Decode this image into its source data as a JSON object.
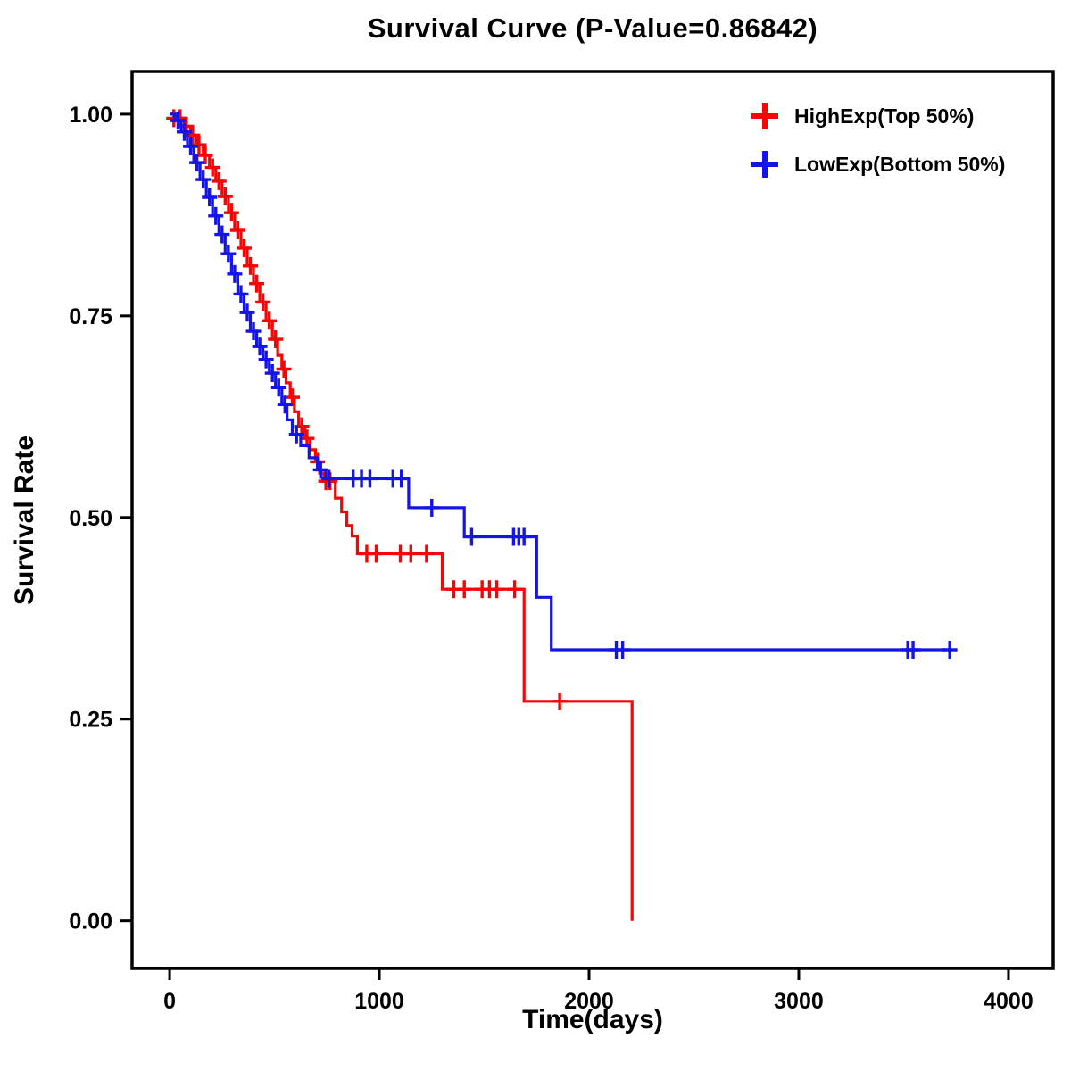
{
  "chart": {
    "title": "Survival Curve (P-Value=0.86842)",
    "xlabel": "Time(days)",
    "ylabel": "Survival Rate"
  },
  "chart_data": {
    "type": "line",
    "subtype": "kaplan-meier-step",
    "title": "Survival Curve (P-Value=0.86842)",
    "p_value": 0.86842,
    "xlabel": "Time(days)",
    "ylabel": "Survival Rate",
    "xlim": [
      -179,
      4213
    ],
    "ylim": [
      -0.059,
      1.053
    ],
    "x_ticks": [
      0,
      1000,
      2000,
      3000,
      4000
    ],
    "x_tick_labels": [
      "0",
      "1000",
      "2000",
      "3000",
      "4000"
    ],
    "y_ticks": [
      0.0,
      0.25,
      0.5,
      0.75,
      1.0
    ],
    "y_tick_labels": [
      "0.00",
      "0.25",
      "0.50",
      "0.75",
      "1.00"
    ],
    "grid": false,
    "legend_position": "top-right",
    "step_mode": "after",
    "series": [
      {
        "name": "HighExp(Top 50%)",
        "color": "#f50505",
        "points": [
          [
            0,
            1.0
          ],
          [
            35,
            0.995
          ],
          [
            70,
            0.985
          ],
          [
            100,
            0.974
          ],
          [
            130,
            0.962
          ],
          [
            160,
            0.949
          ],
          [
            190,
            0.934
          ],
          [
            220,
            0.917
          ],
          [
            250,
            0.898
          ],
          [
            280,
            0.878
          ],
          [
            310,
            0.856
          ],
          [
            340,
            0.834
          ],
          [
            370,
            0.812
          ],
          [
            400,
            0.79
          ],
          [
            430,
            0.767
          ],
          [
            460,
            0.744
          ],
          [
            490,
            0.721
          ],
          [
            515,
            0.701
          ],
          [
            535,
            0.684
          ],
          [
            555,
            0.667
          ],
          [
            575,
            0.649
          ],
          [
            595,
            0.631
          ],
          [
            615,
            0.613
          ],
          [
            645,
            0.598
          ],
          [
            670,
            0.584
          ],
          [
            695,
            0.569
          ],
          [
            715,
            0.555
          ],
          [
            735,
            0.545
          ],
          [
            790,
            0.524
          ],
          [
            820,
            0.507
          ],
          [
            845,
            0.49
          ],
          [
            870,
            0.477
          ],
          [
            895,
            0.455
          ],
          [
            1300,
            0.411
          ],
          [
            1690,
            0.272
          ],
          [
            2205,
            0.0
          ]
        ],
        "censors": [
          [
            20,
            0.995
          ],
          [
            50,
            0.995
          ],
          [
            80,
            0.985
          ],
          [
            110,
            0.974
          ],
          [
            140,
            0.962
          ],
          [
            170,
            0.949
          ],
          [
            205,
            0.934
          ],
          [
            235,
            0.917
          ],
          [
            265,
            0.898
          ],
          [
            295,
            0.878
          ],
          [
            325,
            0.856
          ],
          [
            355,
            0.834
          ],
          [
            385,
            0.812
          ],
          [
            415,
            0.79
          ],
          [
            445,
            0.767
          ],
          [
            475,
            0.744
          ],
          [
            505,
            0.721
          ],
          [
            545,
            0.684
          ],
          [
            585,
            0.649
          ],
          [
            630,
            0.613
          ],
          [
            655,
            0.598
          ],
          [
            705,
            0.569
          ],
          [
            745,
            0.545
          ],
          [
            765,
            0.545
          ],
          [
            940,
            0.455
          ],
          [
            985,
            0.455
          ],
          [
            1100,
            0.455
          ],
          [
            1150,
            0.455
          ],
          [
            1225,
            0.455
          ],
          [
            1355,
            0.411
          ],
          [
            1405,
            0.411
          ],
          [
            1490,
            0.411
          ],
          [
            1525,
            0.411
          ],
          [
            1560,
            0.411
          ],
          [
            1645,
            0.411
          ],
          [
            1860,
            0.272
          ]
        ]
      },
      {
        "name": "LowExp(Bottom 50%)",
        "color": "#1414e6",
        "points": [
          [
            0,
            1.0
          ],
          [
            25,
            0.992
          ],
          [
            55,
            0.978
          ],
          [
            85,
            0.96
          ],
          [
            115,
            0.94
          ],
          [
            145,
            0.919
          ],
          [
            175,
            0.897
          ],
          [
            205,
            0.874
          ],
          [
            235,
            0.851
          ],
          [
            265,
            0.827
          ],
          [
            295,
            0.802
          ],
          [
            325,
            0.777
          ],
          [
            355,
            0.754
          ],
          [
            385,
            0.731
          ],
          [
            415,
            0.712
          ],
          [
            445,
            0.696
          ],
          [
            475,
            0.679
          ],
          [
            505,
            0.661
          ],
          [
            535,
            0.64
          ],
          [
            560,
            0.621
          ],
          [
            585,
            0.603
          ],
          [
            625,
            0.589
          ],
          [
            665,
            0.574
          ],
          [
            705,
            0.559
          ],
          [
            745,
            0.548
          ],
          [
            1140,
            0.512
          ],
          [
            1405,
            0.476
          ],
          [
            1750,
            0.401
          ],
          [
            1820,
            0.336
          ],
          [
            3730,
            0.336
          ]
        ],
        "censors": [
          [
            40,
            0.992
          ],
          [
            70,
            0.978
          ],
          [
            100,
            0.96
          ],
          [
            130,
            0.94
          ],
          [
            160,
            0.919
          ],
          [
            190,
            0.897
          ],
          [
            220,
            0.874
          ],
          [
            250,
            0.851
          ],
          [
            280,
            0.827
          ],
          [
            310,
            0.802
          ],
          [
            340,
            0.777
          ],
          [
            370,
            0.754
          ],
          [
            400,
            0.731
          ],
          [
            430,
            0.712
          ],
          [
            460,
            0.696
          ],
          [
            490,
            0.679
          ],
          [
            520,
            0.661
          ],
          [
            550,
            0.64
          ],
          [
            605,
            0.603
          ],
          [
            720,
            0.559
          ],
          [
            760,
            0.548
          ],
          [
            875,
            0.548
          ],
          [
            915,
            0.548
          ],
          [
            955,
            0.548
          ],
          [
            1065,
            0.548
          ],
          [
            1105,
            0.548
          ],
          [
            1250,
            0.512
          ],
          [
            1440,
            0.476
          ],
          [
            1640,
            0.476
          ],
          [
            1665,
            0.476
          ],
          [
            1690,
            0.476
          ],
          [
            2130,
            0.336
          ],
          [
            2160,
            0.336
          ],
          [
            3520,
            0.336
          ],
          [
            3545,
            0.336
          ],
          [
            3720,
            0.336
          ]
        ]
      }
    ]
  }
}
